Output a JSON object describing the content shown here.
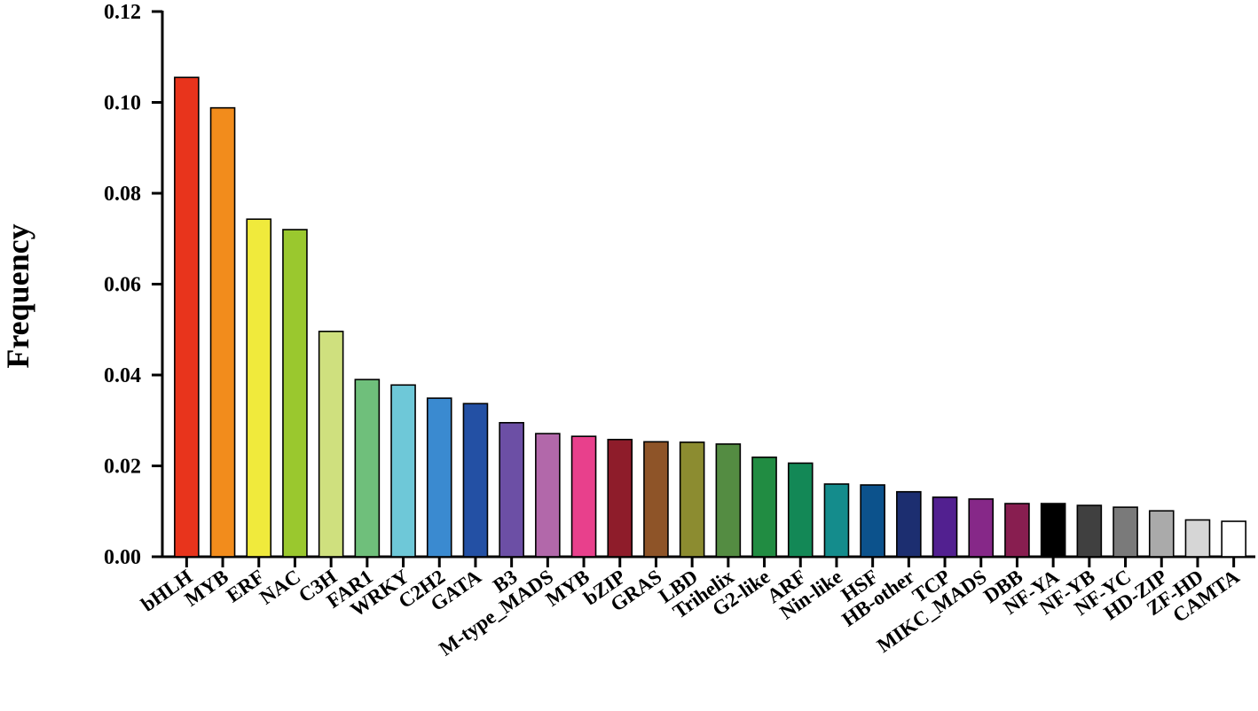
{
  "chart_data": {
    "type": "bar",
    "title": "",
    "xlabel": "",
    "ylabel": "Frequency",
    "ylim": [
      0,
      0.12
    ],
    "yticks": [
      "0.00",
      "0.02",
      "0.04",
      "0.06",
      "0.08",
      "0.10",
      "0.12"
    ],
    "grid": false,
    "legend": "none",
    "categories": [
      "bHLH",
      "MYB",
      "ERF",
      "NAC",
      "C3H",
      "FAR1",
      "WRKY",
      "C2H2",
      "GATA",
      "B3",
      "M-type_MADS",
      "MYB",
      "bZIP",
      "GRAS",
      "LBD",
      "Trihelix",
      "G2-like",
      "ARF",
      "Nin-like",
      "HSF",
      "HB-other",
      "TCP",
      "MIKC_MADS",
      "DBB",
      "NF-YA",
      "NF-YB",
      "NF-YC",
      "HD-ZIP",
      "ZF-HD",
      "CAMTA"
    ],
    "values": [
      0.1055,
      0.0988,
      0.0743,
      0.072,
      0.0496,
      0.039,
      0.0378,
      0.0349,
      0.0337,
      0.0295,
      0.0271,
      0.0265,
      0.0258,
      0.0253,
      0.0252,
      0.0248,
      0.0219,
      0.0206,
      0.016,
      0.0158,
      0.0143,
      0.0131,
      0.0127,
      0.0117,
      0.0117,
      0.0113,
      0.0109,
      0.0101,
      0.0081,
      0.0078
    ],
    "colors": [
      "#e8341c",
      "#f28c1c",
      "#f0ea3c",
      "#9ac82e",
      "#cfe07e",
      "#6fbf7b",
      "#6ec8d8",
      "#3a8ad0",
      "#2350a4",
      "#6c4fa5",
      "#b268aa",
      "#e8408c",
      "#8e1c2a",
      "#8e5428",
      "#8c8c30",
      "#548c42",
      "#218c42",
      "#138856",
      "#148c8c",
      "#0c528c",
      "#1c2e70",
      "#522090",
      "#862888",
      "#881e50",
      "#000000",
      "#404040",
      "#7a7a7a",
      "#aaaaaa",
      "#d6d6d6",
      "#ffffff"
    ]
  }
}
